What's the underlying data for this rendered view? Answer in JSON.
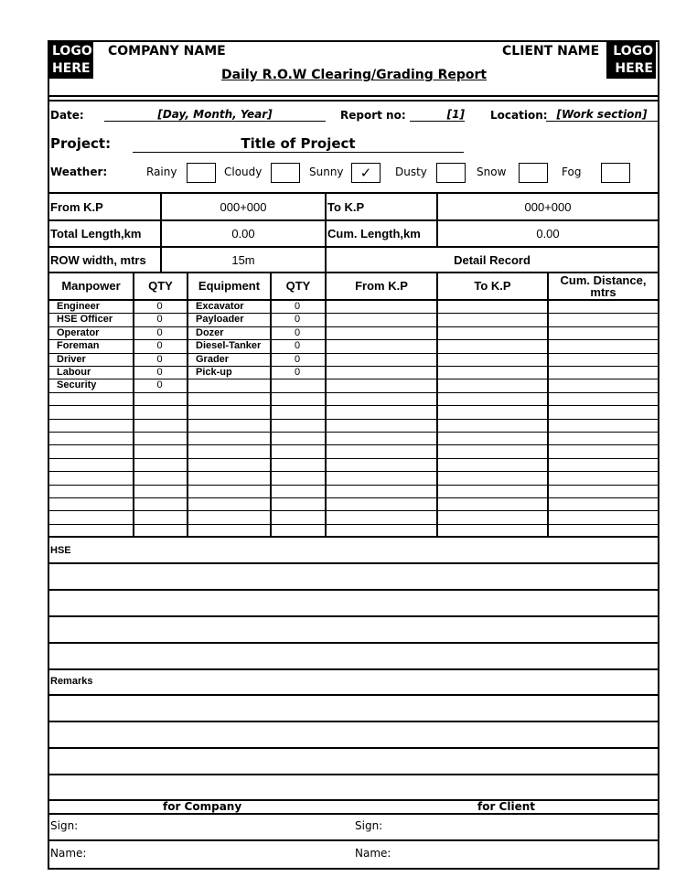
{
  "header": {
    "logo_left": "LOGO HERE",
    "company": "COMPANY NAME",
    "client": "CLIENT NAME",
    "logo_right": "LOGO HERE",
    "title": "Daily R.O.W Clearing/Grading Report"
  },
  "info": {
    "date_label": "Date:",
    "date_value": "[Day, Month, Year]",
    "report_label": "Report no:",
    "report_value": "[1]",
    "location_label": "Location:",
    "location_value": "[Work section]",
    "project_label": "Project:",
    "project_value": "Title of Project",
    "weather_label": "Weather:",
    "weather": [
      {
        "label": "Rainy",
        "checked": false
      },
      {
        "label": "Cloudy",
        "checked": false
      },
      {
        "label": "Sunny",
        "checked": true
      },
      {
        "label": "Dusty",
        "checked": false
      },
      {
        "label": "Snow",
        "checked": false
      },
      {
        "label": "Fog",
        "checked": false
      }
    ],
    "check_mark": "✓"
  },
  "kp": {
    "from_label": "From K.P",
    "from_value": "000+000",
    "to_label": "To K.P",
    "to_value": "000+000",
    "total_label": "Total Length,km",
    "total_value": "0.00",
    "cum_label": "Cum. Length,km",
    "cum_value": "0.00",
    "row_label": "ROW width, mtrs",
    "row_value": "15m",
    "detail_label": "Detail Record"
  },
  "table": {
    "headers": [
      "Manpower",
      "QTY",
      "Equipment",
      "QTY",
      "From K.P",
      "To K.P",
      "Cum. Distance, mtrs"
    ],
    "rows": [
      [
        "Engineer",
        "0",
        "Excavator",
        "0"
      ],
      [
        "HSE Officer",
        "0",
        "Payloader",
        "0"
      ],
      [
        "Operator",
        "0",
        "Dozer",
        "0"
      ],
      [
        "Foreman",
        "0",
        "Diesel-Tanker",
        "0"
      ],
      [
        "Driver",
        "0",
        "Grader",
        "0"
      ],
      [
        "Labour",
        "0",
        "Pick-up",
        "0"
      ],
      [
        "Security",
        "0",
        "",
        ""
      ],
      [
        "",
        "",
        "",
        ""
      ],
      [
        "",
        "",
        "",
        ""
      ],
      [
        "",
        "",
        "",
        ""
      ],
      [
        "",
        "",
        "",
        ""
      ],
      [
        "",
        "",
        "",
        ""
      ],
      [
        "",
        "",
        "",
        ""
      ],
      [
        "",
        "",
        "",
        ""
      ],
      [
        "",
        "",
        "",
        ""
      ],
      [
        "",
        "",
        "",
        ""
      ],
      [
        "",
        "",
        "",
        ""
      ]
    ]
  },
  "hse_label": "HSE",
  "remarks_label": "Remarks",
  "footer": {
    "company": "for Company",
    "client": "for Client",
    "sign_left": "Sign:",
    "sign_right": "Sign:",
    "name_left": "Name:",
    "name_right": "Name:"
  }
}
